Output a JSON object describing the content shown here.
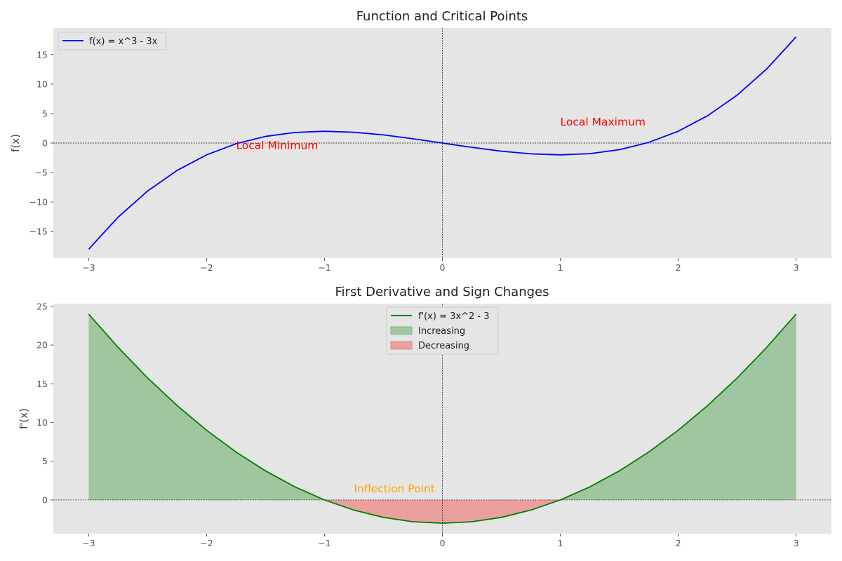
{
  "chart_data": [
    {
      "type": "line",
      "title": "Function and Critical Points",
      "xlabel": "",
      "ylabel": "f(x)",
      "xlim": [
        -3.3,
        3.3
      ],
      "ylim": [
        -19.5,
        19.5
      ],
      "xticks": [
        -3,
        -2,
        -1,
        0,
        1,
        2,
        3
      ],
      "xtick_labels": [
        "−3",
        "−2",
        "−1",
        "0",
        "1",
        "2",
        "3"
      ],
      "yticks": [
        -15,
        -10,
        -5,
        0,
        5,
        10,
        15
      ],
      "ytick_labels": [
        "−15",
        "−10",
        "−5",
        "0",
        "5",
        "10",
        "15"
      ],
      "grid": false,
      "legend_position": "upper-left",
      "series": [
        {
          "name": "f(x) = x^3 - 3x",
          "color": "#0000ff",
          "x": [
            -3,
            -2.75,
            -2.5,
            -2.25,
            -2,
            -1.75,
            -1.5,
            -1.25,
            -1,
            -0.75,
            -0.5,
            -0.25,
            0,
            0.25,
            0.5,
            0.75,
            1,
            1.25,
            1.5,
            1.75,
            2,
            2.25,
            2.5,
            2.75,
            3
          ],
          "y": [
            -18,
            -12.55,
            -8.13,
            -4.64,
            -2,
            -0.11,
            1.13,
            1.8,
            2,
            1.83,
            1.38,
            0.73,
            0,
            -0.73,
            -1.38,
            -1.83,
            -2,
            -1.8,
            -1.13,
            0.11,
            2,
            4.64,
            8.13,
            12.55,
            18
          ]
        }
      ],
      "reference_lines": {
        "x": 0,
        "y": 0
      },
      "annotations": [
        {
          "text": "Local Minimum",
          "x": -1.75,
          "y": -1,
          "color": "#ff0000"
        },
        {
          "text": "Local Maximum",
          "x": 1,
          "y": 3,
          "color": "#ff0000"
        }
      ]
    },
    {
      "type": "area",
      "title": "First Derivative and Sign Changes",
      "xlabel": "",
      "ylabel": "f'(x)",
      "xlim": [
        -3.3,
        3.3
      ],
      "ylim": [
        -4.35,
        25.35
      ],
      "xticks": [
        -3,
        -2,
        -1,
        0,
        1,
        2,
        3
      ],
      "xtick_labels": [
        "−3",
        "−2",
        "−1",
        "0",
        "1",
        "2",
        "3"
      ],
      "yticks": [
        0,
        5,
        10,
        15,
        20,
        25
      ],
      "ytick_labels": [
        "0",
        "5",
        "10",
        "15",
        "20",
        "25"
      ],
      "grid": false,
      "legend_position": "upper-center",
      "series": [
        {
          "name": "f'(x) = 3x^2 - 3",
          "color": "#008000",
          "x": [
            -3,
            -2.75,
            -2.5,
            -2.25,
            -2,
            -1.75,
            -1.5,
            -1.25,
            -1,
            -0.75,
            -0.5,
            -0.25,
            0,
            0.25,
            0.5,
            0.75,
            1,
            1.25,
            1.5,
            1.75,
            2,
            2.25,
            2.5,
            2.75,
            3
          ],
          "y": [
            24,
            19.69,
            15.75,
            12.19,
            9,
            6.19,
            3.75,
            1.69,
            0,
            -1.31,
            -2.25,
            -2.81,
            -3,
            -2.81,
            -2.25,
            -1.31,
            0,
            1.69,
            3.75,
            6.19,
            9,
            12.19,
            15.75,
            19.69,
            24
          ]
        }
      ],
      "fills": [
        {
          "name": "Increasing",
          "color": "#a0c69f",
          "condition": "f'(x) > 0"
        },
        {
          "name": "Decreasing",
          "color": "#eb9f9f",
          "condition": "f'(x) < 0"
        }
      ],
      "reference_lines": {
        "x": 0,
        "y": 0
      },
      "annotations": [
        {
          "text": "Inflection Point",
          "x": -0.75,
          "y": 1,
          "color": "#ffa500"
        }
      ]
    }
  ]
}
